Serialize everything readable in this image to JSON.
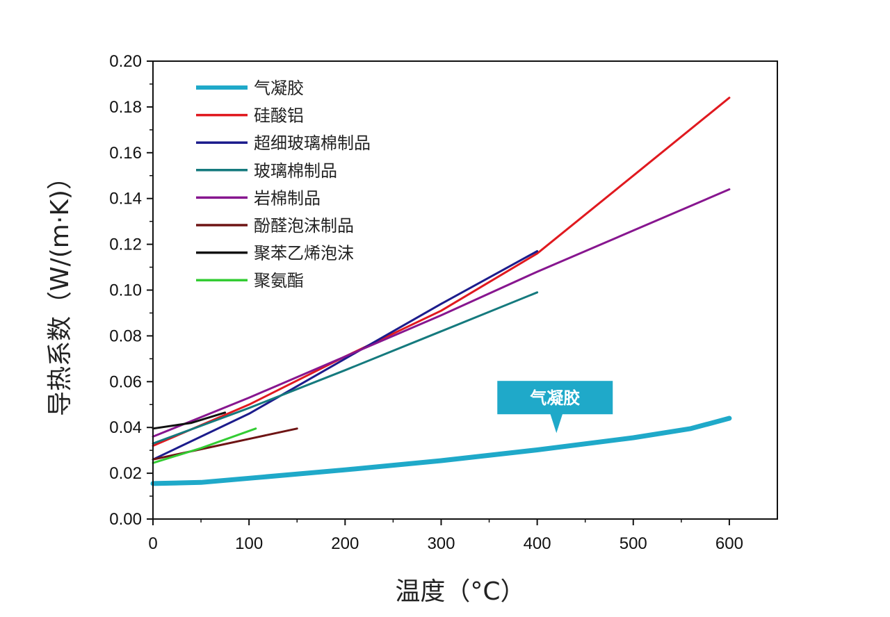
{
  "chart_data": {
    "type": "line",
    "xlabel": "温度（°C）",
    "ylabel": "导热系数（W/(m·K)）",
    "xlim": [
      0,
      650
    ],
    "ylim": [
      0,
      0.2
    ],
    "xticks": [
      "0",
      "100",
      "200",
      "300",
      "400",
      "500",
      "600"
    ],
    "yticks": [
      "0.00",
      "0.02",
      "0.04",
      "0.06",
      "0.08",
      "0.10",
      "0.12",
      "0.14",
      "0.16",
      "0.18",
      "0.20"
    ],
    "legend_position": "top-left",
    "grid": false,
    "series": [
      {
        "name": "气凝胶",
        "color": "#1fa9c9",
        "width": 7,
        "x": [
          0,
          50,
          100,
          200,
          300,
          400,
          500,
          560,
          600
        ],
        "y": [
          0.0155,
          0.016,
          0.0178,
          0.0215,
          0.0255,
          0.0302,
          0.0355,
          0.0395,
          0.044
        ]
      },
      {
        "name": "硅酸铝",
        "color": "#e0191f",
        "width": 3,
        "x": [
          0,
          100,
          200,
          300,
          400,
          500,
          600
        ],
        "y": [
          0.032,
          0.05,
          0.071,
          0.091,
          0.116,
          0.15,
          0.184
        ]
      },
      {
        "name": "超细玻璃棉制品",
        "color": "#1c1c8c",
        "width": 3,
        "x": [
          0,
          100,
          200,
          300,
          400
        ],
        "y": [
          0.026,
          0.046,
          0.07,
          0.094,
          0.117
        ]
      },
      {
        "name": "玻璃棉制品",
        "color": "#157a7e",
        "width": 3,
        "x": [
          0,
          100,
          200,
          300,
          400
        ],
        "y": [
          0.033,
          0.0485,
          0.065,
          0.082,
          0.099
        ]
      },
      {
        "name": "岩棉制品",
        "color": "#87168f",
        "width": 3,
        "x": [
          0,
          100,
          200,
          300,
          400,
          500,
          600
        ],
        "y": [
          0.036,
          0.053,
          0.071,
          0.089,
          0.108,
          0.126,
          0.144
        ]
      },
      {
        "name": "酚醛泡沫制品",
        "color": "#6e1414",
        "width": 3,
        "x": [
          0,
          50,
          100,
          150
        ],
        "y": [
          0.026,
          0.0305,
          0.035,
          0.0395
        ]
      },
      {
        "name": "聚苯乙烯泡沫",
        "color": "#111111",
        "width": 3,
        "x": [
          0,
          40,
          75
        ],
        "y": [
          0.0395,
          0.042,
          0.0465
        ]
      },
      {
        "name": "聚氨酯",
        "color": "#33cc33",
        "width": 3,
        "x": [
          0,
          50,
          107
        ],
        "y": [
          0.0245,
          0.031,
          0.0395
        ]
      }
    ],
    "annotation": {
      "text": "气凝胶",
      "x": 420,
      "y": 0.0315,
      "bg_color": "#1fa9c9"
    }
  }
}
